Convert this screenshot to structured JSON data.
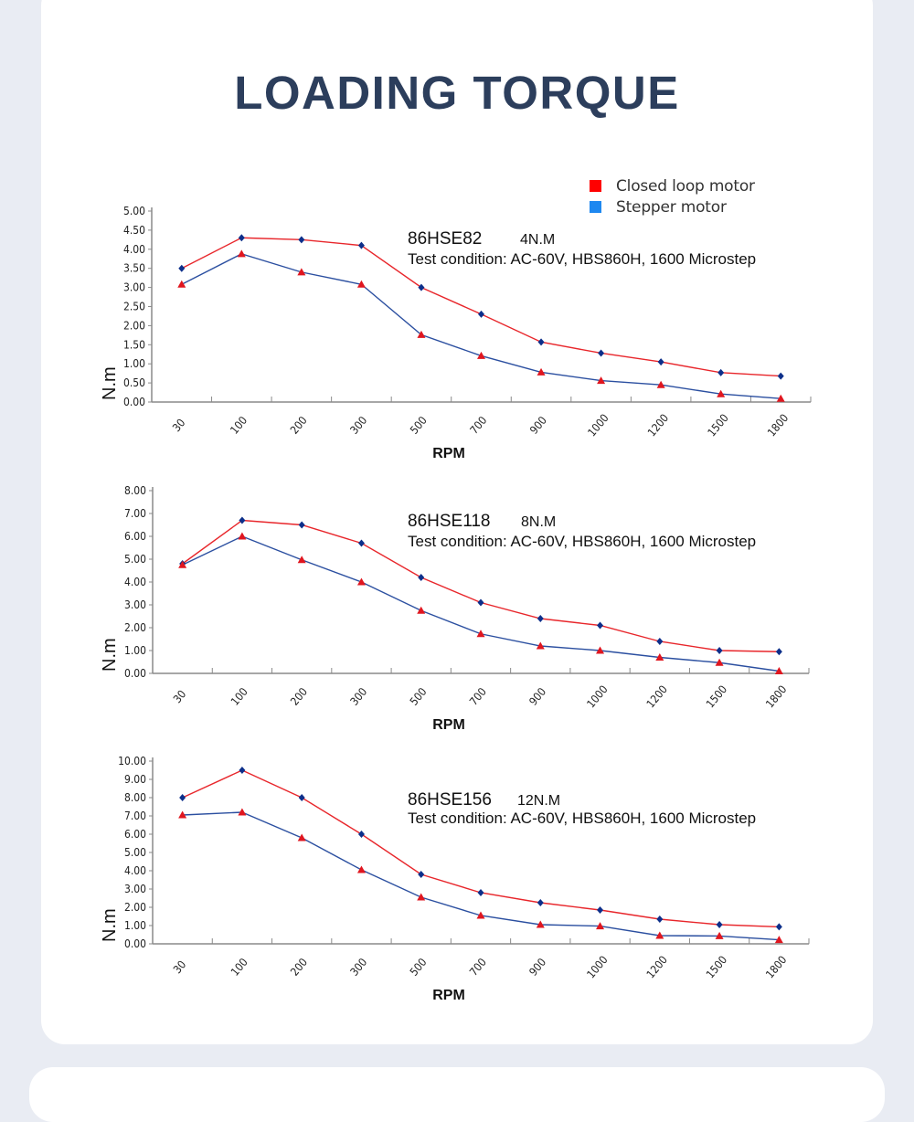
{
  "page": {
    "title": "LOADING TORQUE",
    "background_color": "#e9ecf3",
    "title_color": "#2c3e5c"
  },
  "legend": {
    "items": [
      {
        "label": "Closed loop motor",
        "color": "#ff0000"
      },
      {
        "label": "Stepper motor",
        "color": "#1e88f0"
      }
    ]
  },
  "chart_data": [
    {
      "type": "line",
      "title": "86HSE82",
      "rating": "4N.M",
      "condition": "Test condition: AC-60V, HBS860H, 1600 Microstep",
      "xlabel": "RPM",
      "ylabel": "N.m",
      "ylim": [
        0,
        5
      ],
      "yticks": [
        "0.00",
        "0.50",
        "1.00",
        "1.50",
        "2.00",
        "2.50",
        "3.00",
        "3.50",
        "4.00",
        "4.50",
        "5.00"
      ],
      "categories": [
        "30",
        "100",
        "200",
        "300",
        "500",
        "700",
        "900",
        "1000",
        "1200",
        "1500",
        "1800"
      ],
      "grid": false,
      "series": [
        {
          "name": "Closed loop motor",
          "line_color": "#e8262b",
          "marker": "diamond",
          "marker_color": "#0d2f8a",
          "values": [
            3.5,
            4.3,
            4.25,
            4.1,
            3.0,
            2.3,
            1.57,
            1.28,
            1.05,
            0.77,
            0.68
          ]
        },
        {
          "name": "Stepper motor",
          "line_color": "#2b4fa0",
          "marker": "triangle",
          "marker_color": "#e0161f",
          "values": [
            3.08,
            3.88,
            3.4,
            3.08,
            1.76,
            1.21,
            0.78,
            0.56,
            0.45,
            0.21,
            0.09
          ]
        }
      ]
    },
    {
      "type": "line",
      "title": "86HSE118",
      "rating": "8N.M",
      "condition": "Test condition: AC-60V, HBS860H, 1600 Microstep",
      "xlabel": "RPM",
      "ylabel": "N.m",
      "ylim": [
        0,
        8
      ],
      "yticks": [
        "0.00",
        "1.00",
        "2.00",
        "3.00",
        "4.00",
        "5.00",
        "6.00",
        "7.00",
        "8.00"
      ],
      "categories": [
        "30",
        "100",
        "200",
        "300",
        "500",
        "700",
        "900",
        "1000",
        "1200",
        "1500",
        "1800"
      ],
      "grid": false,
      "series": [
        {
          "name": "Closed loop motor",
          "line_color": "#e8262b",
          "marker": "diamond",
          "marker_color": "#0d2f8a",
          "values": [
            4.8,
            6.7,
            6.5,
            5.7,
            4.2,
            3.1,
            2.4,
            2.1,
            1.4,
            1.0,
            0.95
          ]
        },
        {
          "name": "Stepper motor",
          "line_color": "#2b4fa0",
          "marker": "triangle",
          "marker_color": "#e0161f",
          "values": [
            4.75,
            6.0,
            4.97,
            4.0,
            2.75,
            1.73,
            1.2,
            1.0,
            0.7,
            0.47,
            0.1
          ]
        }
      ]
    },
    {
      "type": "line",
      "title": "86HSE156",
      "rating": "12N.M",
      "condition": "Test condition: AC-60V, HBS860H, 1600 Microstep",
      "xlabel": "RPM",
      "ylabel": "N.m",
      "ylim": [
        0,
        10
      ],
      "yticks": [
        "0.00",
        "1.00",
        "2.00",
        "3.00",
        "4.00",
        "5.00",
        "6.00",
        "7.00",
        "8.00",
        "9.00",
        "10.00"
      ],
      "categories": [
        "30",
        "100",
        "200",
        "300",
        "500",
        "700",
        "900",
        "1000",
        "1200",
        "1500",
        "1800"
      ],
      "grid": false,
      "series": [
        {
          "name": "Closed loop motor",
          "line_color": "#e8262b",
          "marker": "diamond",
          "marker_color": "#0d2f8a",
          "values": [
            8.0,
            9.5,
            8.0,
            6.0,
            3.8,
            2.8,
            2.25,
            1.85,
            1.35,
            1.05,
            0.93
          ]
        },
        {
          "name": "Stepper motor",
          "line_color": "#2b4fa0",
          "marker": "triangle",
          "marker_color": "#e0161f",
          "values": [
            7.05,
            7.2,
            5.8,
            4.05,
            2.55,
            1.55,
            1.05,
            0.97,
            0.45,
            0.43,
            0.22
          ]
        }
      ]
    }
  ]
}
